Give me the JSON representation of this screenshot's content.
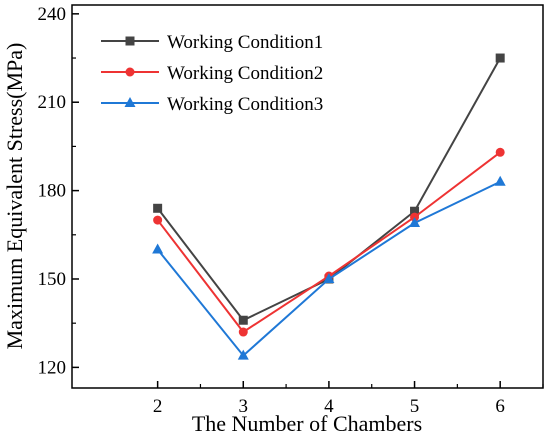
{
  "chart_data": {
    "type": "line",
    "title": "",
    "xlabel": "The Number of Chambers",
    "ylabel": "Maximum Equivalent Stress(MPa)",
    "x": [
      2,
      3,
      4,
      5,
      6
    ],
    "xlim": [
      1.0,
      6.5
    ],
    "ylim": [
      113,
      243
    ],
    "yticks": [
      120,
      150,
      180,
      210,
      240
    ],
    "xticks": [
      2,
      3,
      4,
      5,
      6
    ],
    "grid": false,
    "legend_position": "top-left",
    "series": [
      {
        "name": "Working Condition1",
        "color": "#444444",
        "marker": "square",
        "values": [
          174,
          136,
          150,
          173,
          225
        ]
      },
      {
        "name": "Working Condition2",
        "color": "#ee3333",
        "marker": "circle",
        "values": [
          170,
          132,
          151,
          171,
          193
        ]
      },
      {
        "name": "Working Condition3",
        "color": "#1f78d6",
        "marker": "triangle",
        "values": [
          160,
          124,
          150,
          169,
          183
        ]
      }
    ]
  }
}
